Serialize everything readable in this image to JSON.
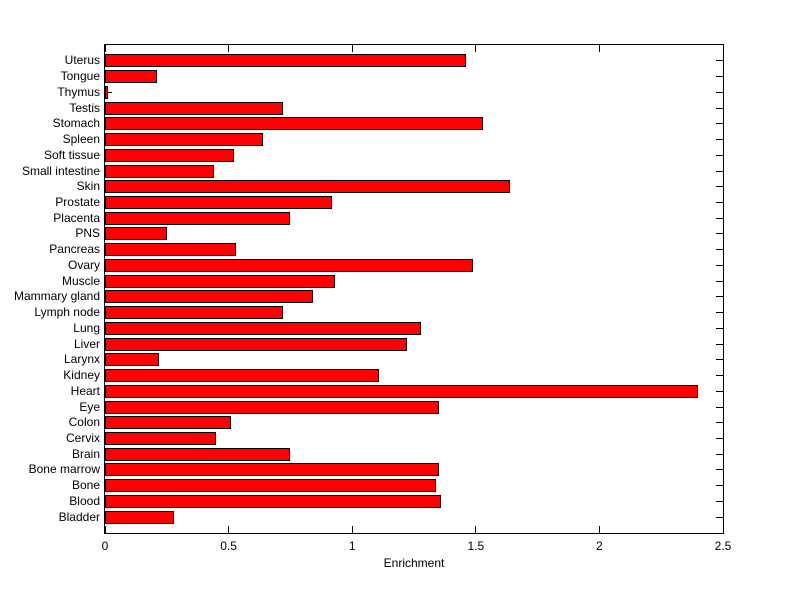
{
  "chart_data": {
    "type": "bar",
    "orientation": "horizontal",
    "title": "",
    "xlabel": "Enrichment",
    "ylabel": "",
    "xlim": [
      0,
      2.5
    ],
    "xticks": [
      0,
      0.5,
      1,
      1.5,
      2,
      2.5
    ],
    "xtick_labels": [
      "0",
      "0.5",
      "1",
      "1.5",
      "2",
      "2.5"
    ],
    "grid": false,
    "legend": null,
    "bar_color": "#ff0000",
    "bar_edge_color": "#000000",
    "axis_color": "#000000",
    "background_color": "#ffffff",
    "categories_top_to_bottom": [
      "Uterus",
      "Tongue",
      "Thymus",
      "Testis",
      "Stomach",
      "Spleen",
      "Soft tissue",
      "Small intestine",
      "Skin",
      "Prostate",
      "Placenta",
      "PNS",
      "Pancreas",
      "Ovary",
      "Muscle",
      "Mammary gland",
      "Lymph node",
      "Lung",
      "Liver",
      "Larynx",
      "Kidney",
      "Heart",
      "Eye",
      "Colon",
      "Cervix",
      "Brain",
      "Bone marrow",
      "Bone",
      "Blood",
      "Bladder"
    ],
    "values": [
      1.46,
      0.21,
      0.01,
      0.72,
      1.53,
      0.64,
      0.52,
      0.44,
      1.64,
      0.92,
      0.75,
      0.25,
      0.53,
      1.49,
      0.93,
      0.84,
      0.72,
      1.28,
      1.22,
      0.22,
      1.11,
      2.4,
      1.35,
      0.51,
      0.45,
      0.75,
      1.35,
      1.34,
      1.36,
      0.28
    ]
  }
}
